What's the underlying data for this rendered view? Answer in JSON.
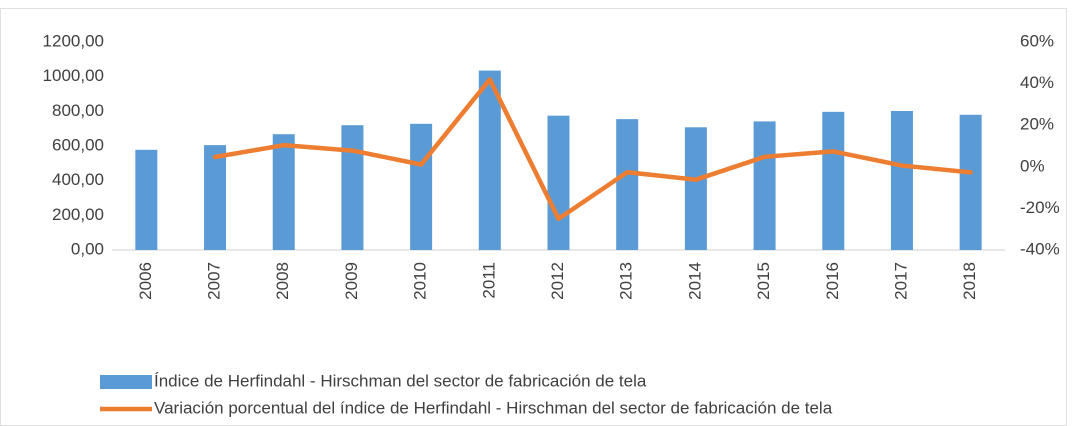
{
  "chart_data": {
    "type": "bar_line",
    "categories": [
      "2006",
      "2007",
      "2008",
      "2009",
      "2010",
      "2011",
      "2012",
      "2013",
      "2014",
      "2015",
      "2016",
      "2017",
      "2018"
    ],
    "series": [
      {
        "name": "Índice de Herfindahl - Hirschman del sector de fabricación de tela",
        "type": "bar",
        "color": "#5b9bd5",
        "values": [
          578,
          605,
          668,
          720,
          728,
          1035,
          775,
          755,
          708,
          742,
          797,
          802,
          780
        ]
      },
      {
        "name": "Variación porcentual del índice de Herfindahl - Hirschman del sector de fabricación de tela",
        "type": "line",
        "axis": "y2",
        "color": "#ed7d31",
        "values": [
          null,
          4.7,
          10.4,
          7.8,
          1.1,
          42,
          -25,
          -2.6,
          -6.2,
          4.8,
          7.4,
          0.6,
          -2.7
        ]
      }
    ],
    "ylim": [
      0,
      1200
    ],
    "yticks": [
      {
        "value": 0,
        "label": "0,00"
      },
      {
        "value": 200,
        "label": "200,00"
      },
      {
        "value": 400,
        "label": "400,00"
      },
      {
        "value": 600,
        "label": "600,00"
      },
      {
        "value": 800,
        "label": "800,00"
      },
      {
        "value": 1000,
        "label": "1000,00"
      },
      {
        "value": 1200,
        "label": "1200,00"
      }
    ],
    "y2lim": [
      -40,
      60
    ],
    "y2ticks": [
      {
        "value": -40,
        "label": "-40%"
      },
      {
        "value": -20,
        "label": "-20%"
      },
      {
        "value": 0,
        "label": "0%"
      },
      {
        "value": 20,
        "label": "20%"
      },
      {
        "value": 40,
        "label": "40%"
      },
      {
        "value": 60,
        "label": "60%"
      }
    ],
    "legend": "bottom"
  }
}
